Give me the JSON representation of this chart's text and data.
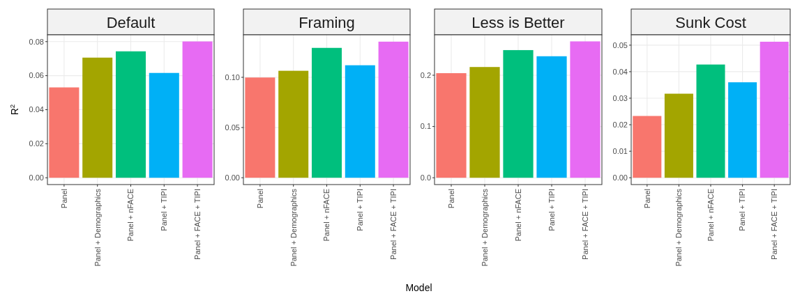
{
  "chart_data": [
    {
      "type": "bar",
      "title": "Default",
      "ylabel": "R$^{2}$",
      "categories": [
        "Panel",
        "Panel + Demographics",
        "Panel + nFACE",
        "Panel + TIPI",
        "Panel + FACE + TIPI"
      ],
      "values": [
        0.0531,
        0.0706,
        0.0743,
        0.0616,
        0.0801
      ],
      "colors": [
        "#f8766d",
        "#a3a500",
        "#00bf7d",
        "#00b0f6",
        "#e76bf3"
      ],
      "ylim": [
        -0.004,
        0.084
      ],
      "yticks": [
        {
          "value": 0,
          "label": "0.00"
        },
        {
          "value": 0.02,
          "label": "0.02"
        },
        {
          "value": 0.04,
          "label": "0.04"
        },
        {
          "value": 0.06,
          "label": "0.06"
        },
        {
          "value": 0.08,
          "label": "0.08"
        }
      ],
      "grid": true
    },
    {
      "type": "bar",
      "title": "Framing",
      "xlabel": "Model",
      "categories": [
        "Panel",
        "Panel + Demographics",
        "Panel + nFACE",
        "Panel + TIPI",
        "Panel + FACE + TIPI"
      ],
      "values": [
        0.0998,
        0.1065,
        0.1293,
        0.112,
        0.1355
      ],
      "colors": [
        "#f8766d",
        "#a3a500",
        "#00bf7d",
        "#00b0f6",
        "#e76bf3"
      ],
      "ylim": [
        -0.0068,
        0.1423
      ],
      "yticks": [
        {
          "value": 0,
          "label": "0.00"
        },
        {
          "value": 0.05,
          "label": "0.05"
        },
        {
          "value": 0.1,
          "label": "0.10"
        }
      ],
      "grid": true
    },
    {
      "type": "bar",
      "title": "Less is Better",
      "categories": [
        "Panel",
        "Panel + Demographics",
        "Panel + nFACE",
        "Panel + TIPI",
        "Panel + FACE + TIPI"
      ],
      "values": [
        0.204,
        0.216,
        0.249,
        0.237,
        0.266
      ],
      "colors": [
        "#f8766d",
        "#a3a500",
        "#00bf7d",
        "#00b0f6",
        "#e76bf3"
      ],
      "ylim": [
        -0.0133,
        0.2788
      ],
      "yticks": [
        {
          "value": 0,
          "label": "0.0"
        },
        {
          "value": 0.1,
          "label": "0.1"
        },
        {
          "value": 0.2,
          "label": "0.2"
        }
      ],
      "grid": true
    },
    {
      "type": "bar",
      "title": "Sunk Cost",
      "categories": [
        "Panel",
        "Panel + Demographics",
        "Panel + nFACE",
        "Panel + TIPI",
        "Panel + FACE + TIPI"
      ],
      "values": [
        0.0233,
        0.0317,
        0.0427,
        0.036,
        0.0513
      ],
      "colors": [
        "#f8766d",
        "#a3a500",
        "#00bf7d",
        "#00b0f6",
        "#e76bf3"
      ],
      "ylim": [
        -0.00257,
        0.0539
      ],
      "yticks": [
        {
          "value": 0,
          "label": "0.00"
        },
        {
          "value": 0.01,
          "label": "0.01"
        },
        {
          "value": 0.02,
          "label": "0.02"
        },
        {
          "value": 0.03,
          "label": "0.03"
        },
        {
          "value": 0.04,
          "label": "0.04"
        },
        {
          "value": 0.05,
          "label": "0.05"
        }
      ],
      "grid": true
    }
  ]
}
